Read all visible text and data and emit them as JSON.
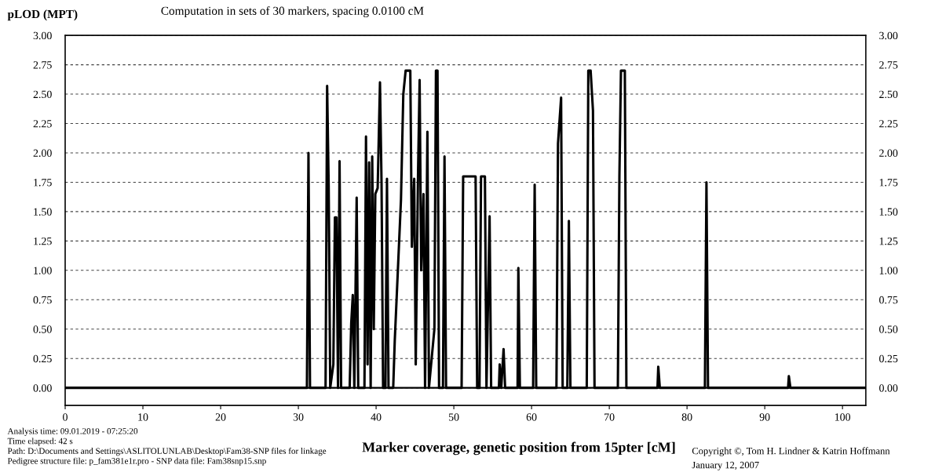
{
  "chart_data": {
    "type": "line",
    "title": "Computation in sets of 30 markers, spacing 0.0100 cM",
    "ylabel": "pLOD (MPT)",
    "xlabel": "Marker coverage, genetic position from 15pter [cM]",
    "annotations": [
      "Analysis time: 09.01.2019 - 07:25:20",
      "Time elapsed: 42 s",
      "Path: D:\\Documents and Settings\\ASLITOLUNLAB\\Desktop\\Fam38-SNP files for linkage",
      "Pedigree structure file: p_fam381e1r.pro - SNP data file: Fam38snp15.snp",
      "Copyright ©, Tom H. Lindner & Katrin Hoffmann",
      "January 12, 2007"
    ],
    "xlim": [
      0,
      103
    ],
    "xticks": [
      0,
      10,
      20,
      30,
      40,
      50,
      60,
      70,
      80,
      90,
      100
    ],
    "ylim": [
      -0.15,
      3.0
    ],
    "yticks": [
      {
        "value": 0,
        "label": "0.00"
      },
      {
        "value": 0.25,
        "label": "0.25"
      },
      {
        "value": 0.5,
        "label": "0.50"
      },
      {
        "value": 0.75,
        "label": "0.75"
      },
      {
        "value": 1.0,
        "label": "1.00"
      },
      {
        "value": 1.25,
        "label": "1.25"
      },
      {
        "value": 1.5,
        "label": "1.50"
      },
      {
        "value": 1.75,
        "label": "1.75"
      },
      {
        "value": 2.0,
        "label": "2.00"
      },
      {
        "value": 2.25,
        "label": "2.25"
      },
      {
        "value": 2.5,
        "label": "2.50"
      },
      {
        "value": 2.75,
        "label": "2.75"
      },
      {
        "value": 3.0,
        "label": "3.00"
      }
    ],
    "y2lim": [
      -0.15,
      3.0
    ],
    "y2ticks": [
      {
        "value": 0,
        "label": "0.00"
      },
      {
        "value": 0.25,
        "label": "0.25"
      },
      {
        "value": 0.5,
        "label": "0.50"
      },
      {
        "value": 0.75,
        "label": "0.75"
      },
      {
        "value": 1.0,
        "label": "1.00"
      },
      {
        "value": 1.25,
        "label": "1.25"
      },
      {
        "value": 1.5,
        "label": "1.50"
      },
      {
        "value": 1.75,
        "label": "1.75"
      },
      {
        "value": 2.0,
        "label": "2.00"
      },
      {
        "value": 2.25,
        "label": "2.25"
      },
      {
        "value": 2.5,
        "label": "2.50"
      },
      {
        "value": 2.75,
        "label": "2.75"
      },
      {
        "value": 3.0,
        "label": "3.00"
      }
    ],
    "grid": "y",
    "line_style": "solid",
    "series": [
      {
        "color": "#000000",
        "x": [
          0,
          31.1,
          31.3,
          31.5,
          33.5,
          33.7,
          33.9,
          34.1,
          34.5,
          34.7,
          34.9,
          35.1,
          35.3,
          35.5,
          36.6,
          36.8,
          37.0,
          37.2,
          37.5,
          37.7,
          38.5,
          38.7,
          38.9,
          39.1,
          39.3,
          39.5,
          39.7,
          39.9,
          40.2,
          40.5,
          40.7,
          40.9,
          41.2,
          41.4,
          41.6,
          42.2,
          42.4,
          42.8,
          43.2,
          43.5,
          43.8,
          44.4,
          44.6,
          44.9,
          45.1,
          45.4,
          45.6,
          45.8,
          46.1,
          46.3,
          46.6,
          46.8,
          47.5,
          47.7,
          47.9,
          48.1,
          48.6,
          48.8,
          49.0,
          51.0,
          51.2,
          52.8,
          53.0,
          53.3,
          53.5,
          54.0,
          54.2,
          54.6,
          54.8,
          55.8,
          55.9,
          56.1,
          56.4,
          56.6,
          58.2,
          58.3,
          58.5,
          60.2,
          60.4,
          60.6,
          63.2,
          63.4,
          63.8,
          64.0,
          64.6,
          64.8,
          65.0,
          67.1,
          67.3,
          67.6,
          67.9,
          68.1,
          71.1,
          71.3,
          71.5,
          72.0,
          72.2,
          76.2,
          76.3,
          76.5,
          82.3,
          82.5,
          82.7,
          93.0,
          93.1,
          93.3,
          103
        ],
        "values": [
          0,
          0,
          2.0,
          0,
          0,
          2.57,
          1.72,
          0,
          0.2,
          1.45,
          1.45,
          0,
          1.93,
          0,
          0,
          0.55,
          0.79,
          0,
          1.62,
          0,
          0,
          2.14,
          0.2,
          1.92,
          0,
          1.97,
          0.5,
          1.65,
          1.7,
          2.6,
          1.75,
          0,
          0,
          1.78,
          0,
          0,
          0.4,
          1.0,
          1.6,
          2.5,
          2.7,
          2.7,
          1.2,
          1.78,
          0.2,
          1.85,
          2.62,
          1.0,
          1.65,
          0,
          2.18,
          0,
          0.5,
          2.7,
          2.7,
          0,
          0,
          1.97,
          0,
          0,
          1.8,
          1.8,
          0,
          0,
          1.8,
          1.8,
          0,
          1.46,
          0,
          0,
          0.2,
          0,
          0.33,
          0,
          0,
          1.02,
          0,
          0,
          1.73,
          0,
          0,
          2.08,
          2.47,
          0,
          0,
          1.42,
          0,
          0,
          2.7,
          2.7,
          2.36,
          0,
          0,
          1.8,
          2.7,
          2.7,
          0,
          0,
          0.18,
          0,
          0,
          1.75,
          0,
          0,
          0.1,
          0,
          0
        ]
      }
    ]
  }
}
